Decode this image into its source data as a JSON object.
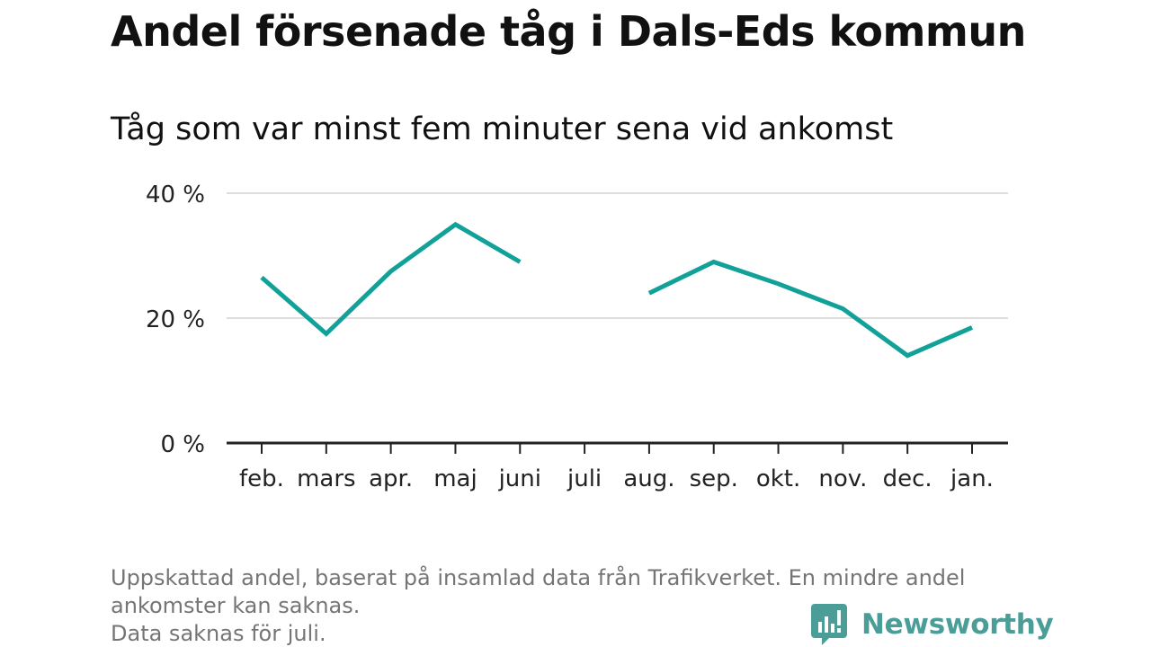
{
  "header": {
    "title": "Andel försenade tåg i Dals-Eds kommun",
    "subtitle": "Tåg som var minst fem minuter sena vid ankomst"
  },
  "chart_data": {
    "type": "line",
    "title": "Andel försenade tåg i Dals-Eds kommun",
    "subtitle": "Tåg som var minst fem minuter sena vid ankomst",
    "xlabel": "",
    "ylabel": "",
    "categories": [
      "feb.",
      "mars",
      "apr.",
      "maj",
      "juni",
      "juli",
      "aug.",
      "sep.",
      "okt.",
      "nov.",
      "dec.",
      "jan."
    ],
    "series": [
      {
        "values": [
          26.5,
          17.5,
          27.5,
          35.0,
          29.0,
          null,
          24.0,
          29.0,
          25.5,
          21.5,
          14.0,
          18.5
        ],
        "color": "#12a199"
      }
    ],
    "ylim": [
      0,
      40
    ],
    "yticks": [
      0,
      20,
      40
    ],
    "ytick_labels": [
      "0 %",
      "20 %",
      "40 %"
    ],
    "grid": true,
    "legend": "none",
    "colors": {
      "line": "#12a199",
      "grid": "#dddddd",
      "axis": "#222222",
      "tick_text": "#222222"
    }
  },
  "footer": {
    "note_line1": "Uppskattad andel, baserat på insamlad data från Trafikverket. En mindre andel",
    "note_line2": "ankomster kan saknas.",
    "note_line3": "Data saknas för juli."
  },
  "brand": {
    "name": "Newsworthy",
    "icon": "newsworthy-logo-icon",
    "color": "#4a9e97"
  }
}
